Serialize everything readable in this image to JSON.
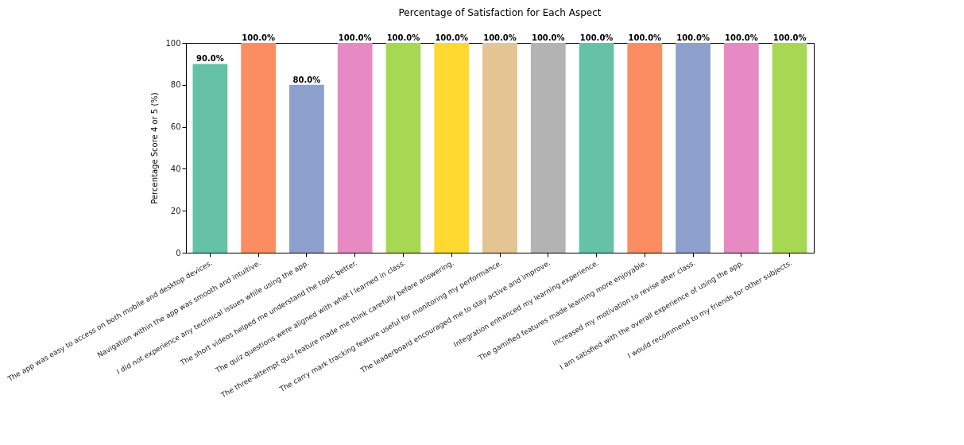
{
  "chart_data": {
    "type": "bar",
    "title": "Percentage of Satisfaction for Each Aspect",
    "ylabel": "Percentage Score 4 or 5 (%)",
    "categories": [
      "The app was easy to access on both mobile and desktop devices.",
      "Navigation within the app was smooth and intuitive.",
      "I did not experience any technical issues while using the app.",
      "The short videos helped me understand the topic better.",
      "The quiz questions were aligned with what I learned in class.",
      "The three-attempt quiz feature made me think carefully before answering.",
      "The carry mark tracking feature useful for monitoring my performance.",
      "The leaderboard encouraged me to stay active and improve.",
      "Integration enhanced my learning experience.",
      "The gamified features made learning more enjoyable.",
      "increased my motivation to revise after class.",
      "I am satisfied with the overall experience of using the app.",
      "I would recommend to my friends for other subjects."
    ],
    "values": [
      90,
      100,
      80,
      100,
      100,
      100,
      100,
      100,
      100,
      100,
      100,
      100,
      100
    ],
    "colors": [
      "#66c2a5",
      "#fc8d62",
      "#8da0cb",
      "#e78ac3",
      "#a6d854",
      "#ffd92f",
      "#e5c494",
      "#b3b3b3",
      "#66c2a5",
      "#fc8d62",
      "#8da0cb",
      "#e78ac3",
      "#a6d854"
    ],
    "value_labels": [
      "90.0%",
      "100.0%",
      "80.0%",
      "100.0%",
      "100.0%",
      "100.0%",
      "100.0%",
      "100.0%",
      "100.0%",
      "100.0%",
      "100.0%",
      "100.0%",
      "100.0%"
    ],
    "ylim": [
      0,
      100
    ],
    "yticks": [
      0,
      20,
      40,
      60,
      80,
      100
    ],
    "grid": false
  }
}
